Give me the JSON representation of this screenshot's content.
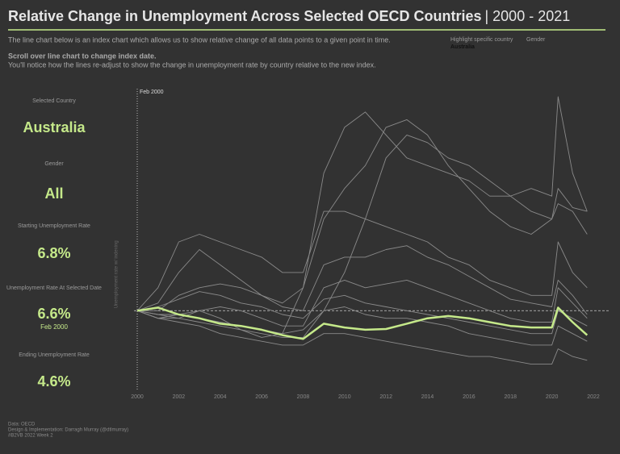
{
  "header": {
    "title": "Relative Change in Unemployment Across Selected OECD Countries",
    "title_range": "| 2000 - 2021",
    "description": "The line chart below is an index chart which allows us to show relative change of all data points to a given point in time.",
    "instruction": "Scroll over line chart to change index date.",
    "instruction_detail": "You'll notice how the lines re-adjust to show the change in unemployment rate by country relative to the new index.",
    "filter_country_label": "Highlight specific country",
    "filter_country_value": "Australia",
    "filter_gender_label": "Gender"
  },
  "panel": {
    "country_label": "Selected Country",
    "country": "Australia",
    "gender_label": "Gender",
    "gender": "All",
    "start_label": "Starting Unemployment Rate",
    "start_value": "6.8%",
    "selected_label": "Unemployment Rate At Selected Date",
    "selected_value": "6.6%",
    "selected_date": "Feb 2000",
    "end_label": "Ending Unemployment Rate",
    "end_value": "4.6%"
  },
  "footer": [
    "Data: OECD",
    "Design & Implementation: Darragh Murray (@dtlmurray)",
    "#B2VB 2022 Week 2"
  ],
  "chart_data": {
    "type": "line",
    "y_label": "Unemployment rate w/ indexing",
    "annotation": "Feb 2000",
    "x": [
      2000,
      2001,
      2002,
      2003,
      2004,
      2005,
      2006,
      2007,
      2008,
      2009,
      2010,
      2011,
      2012,
      2013,
      2014,
      2015,
      2016,
      2017,
      2018,
      2019,
      2020,
      2020.3,
      2021,
      2021.7
    ],
    "xlim": [
      2000,
      2022
    ],
    "xticks": [
      2000,
      2002,
      2004,
      2006,
      2008,
      2010,
      2012,
      2014,
      2016,
      2018,
      2020,
      2022
    ],
    "ylim": [
      -1,
      2.8
    ],
    "highlight": 9,
    "series": [
      {
        "color": "#8a8a8a",
        "values": [
          0,
          -0.1,
          -0.05,
          0.0,
          -0.1,
          -0.25,
          -0.35,
          -0.3,
          0.3,
          1.2,
          1.6,
          1.9,
          2.4,
          2.5,
          2.3,
          1.9,
          1.6,
          1.3,
          1.1,
          1.0,
          1.2,
          1.6,
          1.35,
          1.3
        ]
      },
      {
        "color": "#8a8a8a",
        "values": [
          0,
          -0.05,
          -0.05,
          -0.1,
          -0.15,
          -0.2,
          -0.25,
          -0.3,
          -0.25,
          0.0,
          0.5,
          1.2,
          2.0,
          2.3,
          2.2,
          2.0,
          1.9,
          1.7,
          1.5,
          1.3,
          1.2,
          1.4,
          1.3,
          1.0
        ]
      },
      {
        "color": "#8a8a8a",
        "values": [
          0,
          0.1,
          0.5,
          0.8,
          0.6,
          0.4,
          0.2,
          0.1,
          0.3,
          1.8,
          2.4,
          2.6,
          2.3,
          2.0,
          1.9,
          1.8,
          1.7,
          1.5,
          1.5,
          1.6,
          1.5,
          2.8,
          1.8,
          1.3
        ]
      },
      {
        "color": "#8a8a8a",
        "values": [
          0,
          0.3,
          0.9,
          1.0,
          0.9,
          0.8,
          0.7,
          0.5,
          0.5,
          1.3,
          1.3,
          1.2,
          1.1,
          1.0,
          0.9,
          0.7,
          0.6,
          0.4,
          0.3,
          0.2,
          0.2,
          0.9,
          0.5,
          0.3
        ]
      },
      {
        "color": "#8a8a8a",
        "values": [
          0,
          0.0,
          0.2,
          0.3,
          0.35,
          0.3,
          0.2,
          0.05,
          0.0,
          0.6,
          0.7,
          0.7,
          0.8,
          0.85,
          0.7,
          0.6,
          0.45,
          0.3,
          0.15,
          0.1,
          0.05,
          0.4,
          0.2,
          -0.05
        ]
      },
      {
        "color": "#8a8a8a",
        "values": [
          0,
          -0.1,
          -0.1,
          0.0,
          0.05,
          0.0,
          -0.1,
          -0.2,
          -0.2,
          0.3,
          0.4,
          0.3,
          0.35,
          0.4,
          0.3,
          0.2,
          0.1,
          0.0,
          -0.1,
          -0.15,
          -0.15,
          0.3,
          0.1,
          -0.1
        ]
      },
      {
        "color": "#8a8a8a",
        "values": [
          0,
          -0.05,
          -0.1,
          -0.15,
          -0.2,
          -0.25,
          -0.3,
          -0.35,
          -0.35,
          0.0,
          0.05,
          -0.05,
          -0.1,
          -0.1,
          -0.15,
          -0.2,
          -0.3,
          -0.35,
          -0.4,
          -0.45,
          -0.45,
          -0.2,
          -0.3,
          -0.4
        ]
      },
      {
        "color": "#8a8a8a",
        "values": [
          0,
          -0.1,
          -0.15,
          -0.2,
          -0.3,
          -0.35,
          -0.4,
          -0.45,
          -0.45,
          -0.3,
          -0.3,
          -0.35,
          -0.4,
          -0.45,
          -0.5,
          -0.55,
          -0.6,
          -0.6,
          -0.65,
          -0.7,
          -0.7,
          -0.5,
          -0.6,
          -0.65
        ]
      },
      {
        "color": "#8a8a8a",
        "values": [
          0,
          0.05,
          0.15,
          0.25,
          0.2,
          0.1,
          0.05,
          -0.05,
          -0.1,
          0.15,
          0.2,
          0.1,
          0.05,
          0.0,
          -0.05,
          -0.1,
          -0.15,
          -0.2,
          -0.25,
          -0.3,
          -0.3,
          0.0,
          -0.1,
          -0.2
        ]
      },
      {
        "color": "#c5e98a",
        "values": [
          0,
          0.04,
          -0.05,
          -0.1,
          -0.17,
          -0.2,
          -0.25,
          -0.32,
          -0.37,
          -0.17,
          -0.22,
          -0.25,
          -0.24,
          -0.17,
          -0.1,
          -0.07,
          -0.1,
          -0.15,
          -0.2,
          -0.22,
          -0.22,
          0.04,
          -0.15,
          -0.32
        ]
      }
    ]
  }
}
